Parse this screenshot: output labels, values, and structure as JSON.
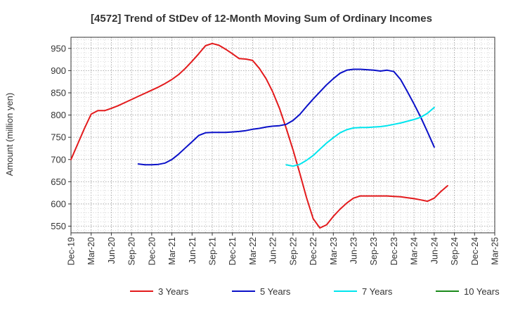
{
  "chart_data": {
    "type": "line",
    "title": "[4572]  Trend of StDev of 12-Month Moving Sum of Ordinary Incomes",
    "ylabel": "Amount (million yen)",
    "xlabel": "",
    "ylim": [
      535,
      975
    ],
    "yticks": [
      550,
      600,
      650,
      700,
      750,
      800,
      850,
      900,
      950
    ],
    "categories": [
      "Dec-19",
      "Mar-20",
      "Jun-20",
      "Sep-20",
      "Dec-20",
      "Mar-21",
      "Jun-21",
      "Sep-21",
      "Dec-21",
      "Mar-22",
      "Jun-22",
      "Sep-22",
      "Dec-22",
      "Mar-23",
      "Jun-23",
      "Sep-23",
      "Dec-23",
      "Mar-24",
      "Jun-24",
      "Sep-24",
      "Dec-24",
      "Mar-25"
    ],
    "grid": true,
    "legend_position": "bottom",
    "series": [
      {
        "name": "3 Years",
        "color": "#e31a1c",
        "points": [
          [
            0,
            700
          ],
          [
            0.333,
            735
          ],
          [
            0.667,
            770
          ],
          [
            1,
            802
          ],
          [
            1.333,
            810
          ],
          [
            1.667,
            810
          ],
          [
            2,
            815
          ],
          [
            2.333,
            821
          ],
          [
            2.667,
            828
          ],
          [
            3,
            835
          ],
          [
            3.333,
            842
          ],
          [
            3.667,
            849
          ],
          [
            4,
            856
          ],
          [
            4.333,
            863
          ],
          [
            4.667,
            871
          ],
          [
            5,
            880
          ],
          [
            5.333,
            891
          ],
          [
            5.667,
            905
          ],
          [
            6,
            921
          ],
          [
            6.333,
            938
          ],
          [
            6.667,
            956
          ],
          [
            7,
            961
          ],
          [
            7.333,
            957
          ],
          [
            7.667,
            948
          ],
          [
            8,
            938
          ],
          [
            8.333,
            927
          ],
          [
            8.667,
            926
          ],
          [
            9,
            923
          ],
          [
            9.333,
            905
          ],
          [
            9.667,
            882
          ],
          [
            10,
            852
          ],
          [
            10.333,
            815
          ],
          [
            10.667,
            770
          ],
          [
            11,
            722
          ],
          [
            11.333,
            670
          ],
          [
            11.667,
            615
          ],
          [
            12,
            567
          ],
          [
            12.333,
            546
          ],
          [
            12.667,
            553
          ],
          [
            13,
            572
          ],
          [
            13.333,
            588
          ],
          [
            13.667,
            602
          ],
          [
            14,
            613
          ],
          [
            14.333,
            618
          ],
          [
            14.667,
            618
          ],
          [
            15,
            618
          ],
          [
            15.333,
            618
          ],
          [
            15.667,
            618
          ],
          [
            16,
            617
          ],
          [
            16.333,
            616
          ],
          [
            16.667,
            614
          ],
          [
            17,
            612
          ],
          [
            17.333,
            609
          ],
          [
            17.667,
            606
          ],
          [
            18,
            613
          ],
          [
            18.333,
            628
          ],
          [
            18.667,
            641
          ]
        ]
      },
      {
        "name": "5 Years",
        "color": "#0a10c8",
        "points": [
          [
            3.333,
            690
          ],
          [
            3.667,
            688
          ],
          [
            4,
            688
          ],
          [
            4.333,
            689
          ],
          [
            4.667,
            692
          ],
          [
            5,
            700
          ],
          [
            5.333,
            712
          ],
          [
            5.667,
            726
          ],
          [
            6,
            740
          ],
          [
            6.333,
            754
          ],
          [
            6.667,
            760
          ],
          [
            7,
            761
          ],
          [
            7.333,
            761
          ],
          [
            7.667,
            761
          ],
          [
            8,
            762
          ],
          [
            8.333,
            763
          ],
          [
            8.667,
            765
          ],
          [
            9,
            768
          ],
          [
            9.333,
            770
          ],
          [
            9.667,
            773
          ],
          [
            10,
            775
          ],
          [
            10.333,
            776
          ],
          [
            10.667,
            779
          ],
          [
            11,
            788
          ],
          [
            11.333,
            801
          ],
          [
            11.667,
            819
          ],
          [
            12,
            836
          ],
          [
            12.333,
            852
          ],
          [
            12.667,
            868
          ],
          [
            13,
            882
          ],
          [
            13.333,
            894
          ],
          [
            13.667,
            901
          ],
          [
            14,
            903
          ],
          [
            14.333,
            903
          ],
          [
            14.667,
            902
          ],
          [
            15,
            901
          ],
          [
            15.333,
            899
          ],
          [
            15.667,
            901
          ],
          [
            16,
            898
          ],
          [
            16.333,
            880
          ],
          [
            16.667,
            853
          ],
          [
            17,
            825
          ],
          [
            17.333,
            795
          ],
          [
            17.667,
            762
          ],
          [
            18,
            728
          ]
        ]
      },
      {
        "name": "7 Years",
        "color": "#00e5ee",
        "points": [
          [
            10.667,
            688
          ],
          [
            11,
            685
          ],
          [
            11.333,
            689
          ],
          [
            11.667,
            698
          ],
          [
            12,
            709
          ],
          [
            12.333,
            723
          ],
          [
            12.667,
            737
          ],
          [
            13,
            749
          ],
          [
            13.333,
            760
          ],
          [
            13.667,
            767
          ],
          [
            14,
            771
          ],
          [
            14.333,
            772
          ],
          [
            14.667,
            772
          ],
          [
            15,
            773
          ],
          [
            15.333,
            774
          ],
          [
            15.667,
            776
          ],
          [
            16,
            779
          ],
          [
            16.333,
            782
          ],
          [
            16.667,
            786
          ],
          [
            17,
            790
          ],
          [
            17.333,
            795
          ],
          [
            17.667,
            804
          ],
          [
            18,
            817
          ]
        ]
      },
      {
        "name": "10 Years",
        "color": "#1b8a1b",
        "points": []
      }
    ]
  }
}
